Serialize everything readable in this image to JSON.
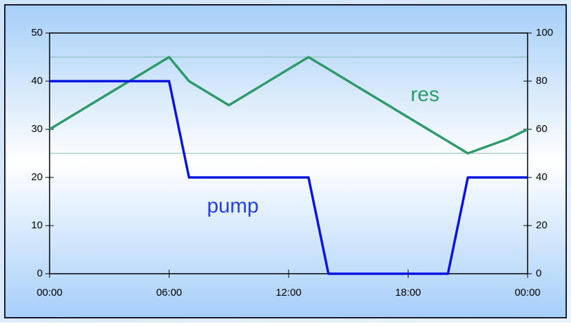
{
  "chart_data": {
    "type": "line",
    "xlim": [
      0,
      24
    ],
    "xticks": [
      {
        "value": 0,
        "label": "00:00"
      },
      {
        "value": 6,
        "label": "06:00"
      },
      {
        "value": 12,
        "label": "12:00"
      },
      {
        "value": 18,
        "label": "18:00"
      },
      {
        "value": 24,
        "label": "00:00"
      }
    ],
    "ylim": [
      0,
      50
    ],
    "yticks": [
      0,
      10,
      20,
      30,
      40,
      50
    ],
    "y2lim": [
      0,
      100
    ],
    "y2ticks": [
      0,
      20,
      40,
      60,
      80,
      100
    ],
    "reference_lines": [
      45,
      25
    ],
    "reference_color": "#7fb8b0",
    "series": [
      {
        "name": "res",
        "color": "#2e9a6a",
        "x": [
          0,
          6,
          7,
          8,
          9,
          13,
          21,
          23,
          24
        ],
        "values": [
          30,
          45,
          40,
          37.5,
          35,
          45,
          25,
          28,
          30
        ]
      },
      {
        "name": "pump",
        "color": "#0a14e0",
        "x": [
          0,
          6,
          7,
          13,
          14,
          20,
          21,
          24
        ],
        "values": [
          40,
          40,
          20,
          20,
          0,
          0,
          20,
          20
        ]
      }
    ],
    "annotations": [
      "res",
      "pump"
    ]
  }
}
